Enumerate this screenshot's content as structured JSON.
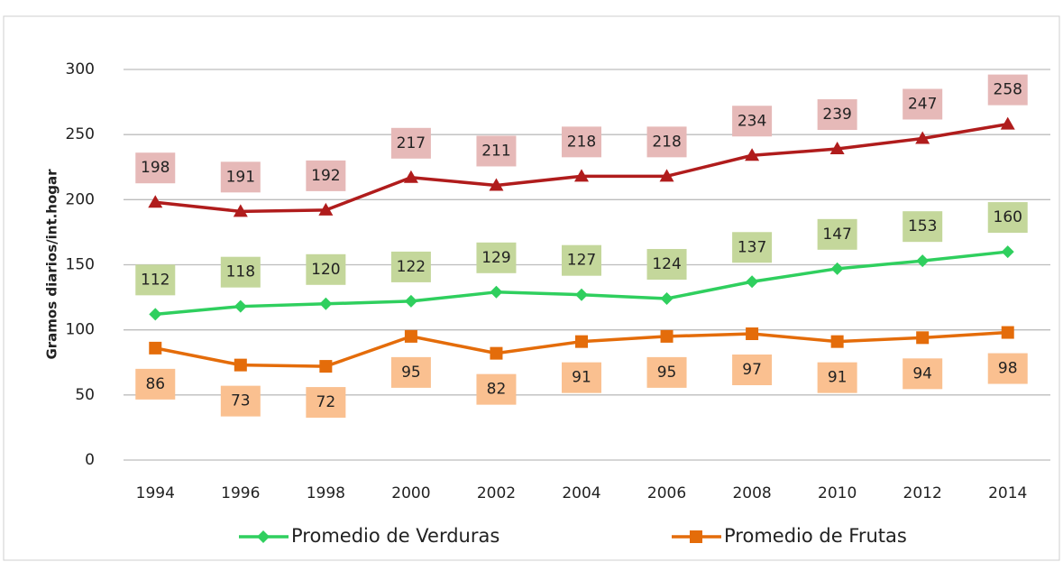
{
  "chart_data": {
    "type": "line",
    "y_label": "Gramos diarios/int.hogar",
    "categories": [
      "1994",
      "1996",
      "1998",
      "2000",
      "2002",
      "2004",
      "2006",
      "2008",
      "2010",
      "2012",
      "2014"
    ],
    "series": [
      {
        "color": "#b01c1c",
        "marker": "triangle",
        "label_color": "#e6b9b8",
        "label_position": "above",
        "values": [
          198,
          191,
          192,
          217,
          211,
          218,
          218,
          234,
          239,
          247,
          258
        ]
      },
      {
        "name": "Promedio de Verduras",
        "color": "#2fcf5e",
        "marker": "diamond",
        "label_color": "#c4d79b",
        "label_position": "above",
        "values": [
          112,
          118,
          120,
          122,
          129,
          127,
          124,
          137,
          147,
          153,
          160
        ]
      },
      {
        "name": "Promedio de Frutas",
        "color": "#e46c0a",
        "marker": "square",
        "label_color": "#fac090",
        "label_position": "below",
        "values": [
          86,
          73,
          72,
          95,
          82,
          91,
          95,
          97,
          91,
          94,
          98
        ]
      }
    ],
    "ylim": [
      0,
      300
    ],
    "yticks": [
      0,
      50,
      100,
      150,
      200,
      250,
      300
    ],
    "grid": true,
    "legend": "bottom"
  }
}
